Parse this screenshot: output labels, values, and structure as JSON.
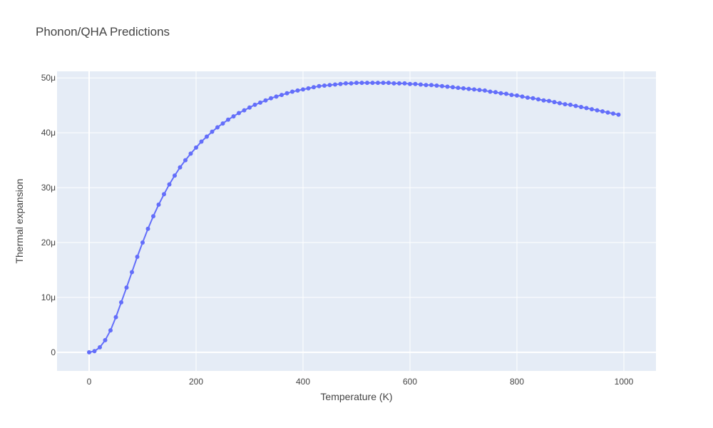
{
  "chart_data": {
    "type": "line",
    "title": "Phonon/QHA Predictions",
    "xlabel": "Temperature (K)",
    "ylabel": "Thermal expansion",
    "xlim": [
      -60,
      1060
    ],
    "ylim": [
      -3.4,
      51.2
    ],
    "grid": true,
    "legend": "none",
    "x_ticks": [
      {
        "value": 0,
        "label": "0"
      },
      {
        "value": 200,
        "label": "200"
      },
      {
        "value": 400,
        "label": "400"
      },
      {
        "value": 600,
        "label": "600"
      },
      {
        "value": 800,
        "label": "800"
      },
      {
        "value": 1000,
        "label": "1000"
      }
    ],
    "y_ticks": [
      {
        "value": 0,
        "label": "0"
      },
      {
        "value": 10,
        "label": "10μ"
      },
      {
        "value": 20,
        "label": "20μ"
      },
      {
        "value": 30,
        "label": "30μ"
      },
      {
        "value": 40,
        "label": "40μ"
      },
      {
        "value": 50,
        "label": "50μ"
      }
    ],
    "y_unit": "μ (×1e-6)",
    "colors": {
      "series": "#636efa",
      "plot_background": "#e5ecf6",
      "grid": "#ffffff",
      "text": "#444444"
    },
    "series": [
      {
        "mode": "lines+markers",
        "x": [
          0,
          10,
          20,
          30,
          40,
          50,
          60,
          70,
          80,
          90,
          100,
          110,
          120,
          130,
          140,
          150,
          160,
          170,
          180,
          190,
          200,
          210,
          220,
          230,
          240,
          250,
          260,
          270,
          280,
          290,
          300,
          310,
          320,
          330,
          340,
          350,
          360,
          370,
          380,
          390,
          400,
          410,
          420,
          430,
          440,
          450,
          460,
          470,
          480,
          490,
          500,
          510,
          520,
          530,
          540,
          550,
          560,
          570,
          580,
          590,
          600,
          610,
          620,
          630,
          640,
          650,
          660,
          670,
          680,
          690,
          700,
          710,
          720,
          730,
          740,
          750,
          760,
          770,
          780,
          790,
          800,
          810,
          820,
          830,
          840,
          850,
          860,
          870,
          880,
          890,
          900,
          910,
          920,
          930,
          940,
          950,
          960,
          970,
          980,
          990
        ],
        "y": [
          0,
          0.2,
          0.9,
          2.2,
          4.0,
          6.4,
          9.1,
          11.8,
          14.6,
          17.4,
          20.0,
          22.5,
          24.8,
          26.9,
          28.8,
          30.6,
          32.2,
          33.7,
          35.0,
          36.2,
          37.3,
          38.4,
          39.3,
          40.2,
          41.0,
          41.7,
          42.4,
          43.0,
          43.6,
          44.1,
          44.6,
          45.1,
          45.5,
          45.9,
          46.3,
          46.6,
          46.9,
          47.2,
          47.5,
          47.7,
          47.9,
          48.1,
          48.3,
          48.5,
          48.6,
          48.7,
          48.8,
          48.9,
          49.0,
          49.0,
          49.1,
          49.1,
          49.1,
          49.1,
          49.1,
          49.1,
          49.1,
          49.0,
          49.0,
          49.0,
          48.9,
          48.9,
          48.8,
          48.7,
          48.7,
          48.6,
          48.5,
          48.4,
          48.3,
          48.2,
          48.1,
          48.0,
          47.9,
          47.8,
          47.7,
          47.5,
          47.4,
          47.2,
          47.1,
          46.9,
          46.8,
          46.6,
          46.4,
          46.3,
          46.1,
          45.9,
          45.8,
          45.6,
          45.4,
          45.2,
          45.1,
          44.9,
          44.7,
          44.5,
          44.3,
          44.1,
          43.9,
          43.7,
          43.5,
          43.3
        ]
      }
    ]
  }
}
